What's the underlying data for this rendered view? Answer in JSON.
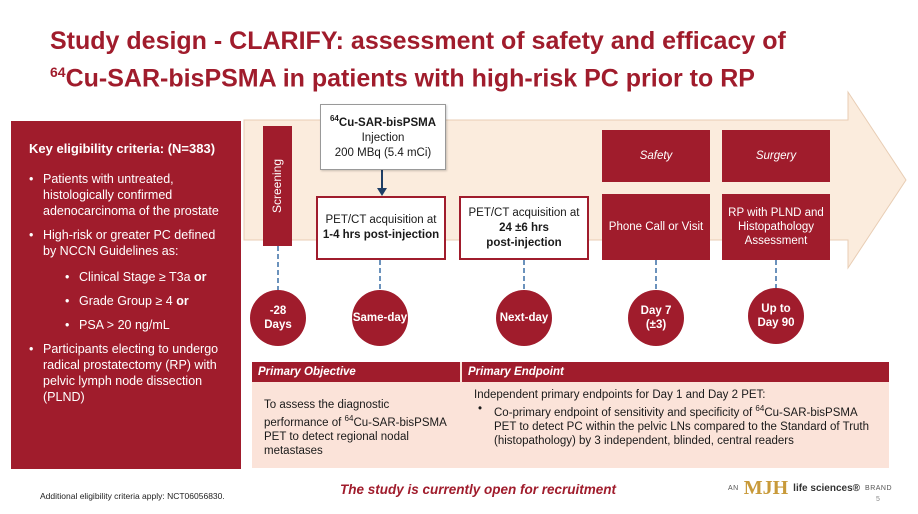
{
  "title": {
    "line1": "Study design - CLARIFY: assessment of safety and efficacy of",
    "line2_sup": "64",
    "line2": "Cu-SAR-bisPSMA in patients with high-risk PC prior to RP"
  },
  "eligibility": {
    "heading": "Key eligibility criteria: (N=383)",
    "item1": "Patients with untreated, histologically confirmed adenocarcinoma of the prostate",
    "item2": "High-risk or greater PC defined by NCCN Guidelines as:",
    "sub1_text": "Clinical Stage ≥ T3a ",
    "sub1_bold": "or",
    "sub2_text": "Grade Group ≥ 4 ",
    "sub2_bold": "or",
    "sub3": "PSA > 20 ng/mL",
    "item3": "Participants electing to undergo radical prostatectomy (RP) with pelvic lymph node dissection (PLND)"
  },
  "timeline": {
    "screening": "Screening",
    "injection": {
      "sup": "64",
      "name": "Cu-SAR-bisPSMA",
      "line2": "Injection",
      "line3": "200 MBq (5.4 mCi)"
    },
    "pet1": {
      "line1": "PET/CT acquisition at",
      "bold": "1-4 hrs post-injection"
    },
    "pet2": {
      "line1": "PET/CT acquisition at",
      "bold1": "24 ±6 hrs",
      "bold2": "post-injection"
    },
    "safety": {
      "head": "Safety",
      "body": "Phone Call or Visit"
    },
    "surgery": {
      "head": "Surgery",
      "body": "RP with PLND and Histopathology Assessment"
    },
    "circles": {
      "c1_l1": "-28",
      "c1_l2": "Days",
      "c2": "Same-day",
      "c3": "Next-day",
      "c4_l1": "Day 7",
      "c4_l2": "(±3)",
      "c5_l1": "Up to",
      "c5_l2": "Day 90"
    }
  },
  "objectives": {
    "primary_objective_label": "Primary Objective",
    "primary_endpoint_label": "Primary Endpoint",
    "objective_pre": "To assess the diagnostic performance of ",
    "objective_sup": "64",
    "objective_post": "Cu-SAR-bisPSMA PET to detect regional nodal metastases",
    "endpoint_intro": "Independent primary endpoints for Day 1 and Day 2 PET:",
    "endpoint_pre": "Co-primary endpoint of sensitivity and specificity of ",
    "endpoint_sup": "64",
    "endpoint_post": "Cu-SAR-bisPSMA PET to detect PC within the pelvic LNs compared to the Standard of Truth (histopathology) by 3 independent, blinded, central readers"
  },
  "footer": {
    "footnote": "Additional eligibility criteria apply: NCT06056830.",
    "recruit": "The study is currently open for recruitment",
    "brand_an": "AN",
    "brand_mjh": "MJH",
    "brand_ls": "life sciences®",
    "brand_brand": "BRAND",
    "page": "5"
  },
  "colors": {
    "accent": "#a01c2c",
    "arrow_fill": "#fbecdd",
    "table_bg": "#fbe3d9"
  }
}
